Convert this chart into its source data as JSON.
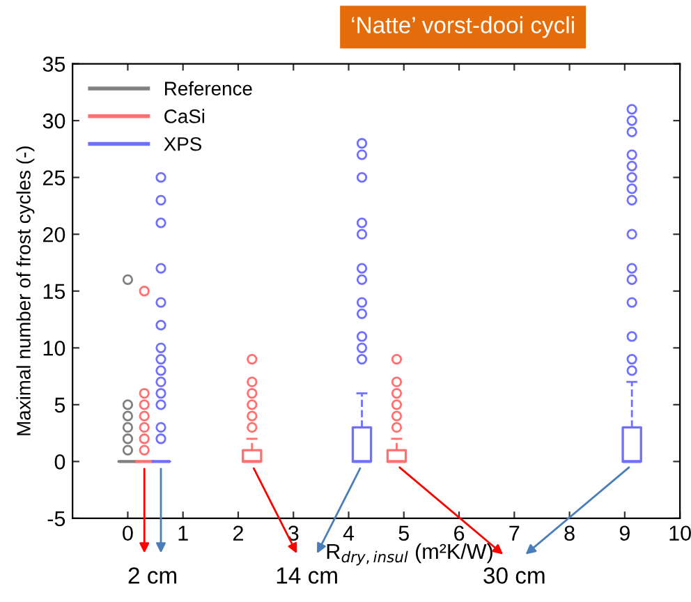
{
  "chart_data": {
    "type": "box",
    "title": "‘Natte’ vorst-dooi cycli",
    "xlabel": "R$_{dry,insul}$ (m²K/W)",
    "ylabel": "Maximal number of frost cycles (-)",
    "xlim": [
      -1,
      10
    ],
    "xticks": [
      0,
      1,
      2,
      3,
      4,
      5,
      6,
      7,
      8,
      9,
      10
    ],
    "ylim": [
      -5,
      35
    ],
    "yticks": [
      -5,
      0,
      5,
      10,
      15,
      20,
      25,
      30,
      35
    ],
    "grid": false,
    "legend": "top left",
    "series": [
      {
        "name": "Reference",
        "color": "#808080",
        "x": [
          0
        ],
        "boxes": [
          {
            "low": 0,
            "q1": 0,
            "median": 0,
            "q3": 0,
            "high": 0,
            "outliers": [
              1,
              2,
              3,
              4,
              5,
              16
            ]
          }
        ]
      },
      {
        "name": "CaSi",
        "color": "#ff7070",
        "x": [
          0.3,
          2.25,
          4.87
        ],
        "boxes": [
          {
            "low": 0,
            "q1": 0,
            "median": 0,
            "q3": 0,
            "high": 0,
            "outliers": [
              1,
              2,
              3,
              4,
              5,
              6,
              15
            ]
          },
          {
            "low": 0,
            "q1": 0,
            "median": 0,
            "q3": 1,
            "high": 2,
            "outliers": [
              3,
              4,
              5,
              6,
              7,
              9
            ]
          },
          {
            "low": 0,
            "q1": 0,
            "median": 0,
            "q3": 1,
            "high": 2,
            "outliers": [
              3,
              4,
              5,
              6,
              7,
              9
            ]
          }
        ]
      },
      {
        "name": "XPS",
        "color": "#7070ff",
        "x": [
          0.6,
          4.24,
          9.13
        ],
        "boxes": [
          {
            "low": 0,
            "q1": 0,
            "median": 0,
            "q3": 0,
            "high": 0,
            "outliers": [
              2,
              3,
              5,
              6,
              7,
              8,
              9,
              10,
              12,
              14,
              17,
              21,
              23,
              25
            ]
          },
          {
            "low": 0,
            "q1": 0,
            "median": 0,
            "q3": 3,
            "high": 6,
            "outliers": [
              9,
              10,
              11,
              13,
              14,
              16,
              17,
              20,
              21,
              25,
              27,
              28
            ]
          },
          {
            "low": 0,
            "q1": 0,
            "median": 0,
            "q3": 3,
            "high": 7,
            "outliers": [
              8,
              9,
              11,
              14,
              16,
              17,
              20,
              23,
              24,
              25,
              26,
              27,
              29,
              30,
              31
            ]
          }
        ]
      }
    ],
    "annotations": [
      "2 cm",
      "14 cm",
      "30 cm"
    ]
  }
}
